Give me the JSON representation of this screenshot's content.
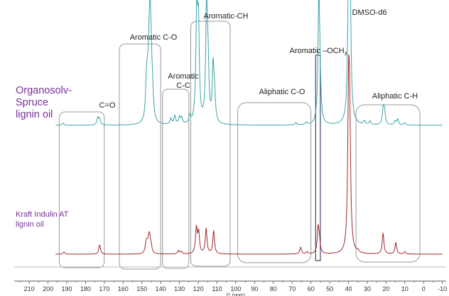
{
  "chart_data": {
    "type": "line",
    "title": "",
    "xlabel": "f1 (ppm)",
    "ylabel": "",
    "x_reversed": true,
    "xlim": [
      218,
      -12
    ],
    "x_ticks": [
      210,
      200,
      190,
      180,
      170,
      160,
      150,
      140,
      130,
      120,
      110,
      100,
      90,
      80,
      70,
      60,
      50,
      40,
      30,
      20,
      10,
      0,
      -10
    ],
    "series": [
      {
        "name_lines": [
          "Organosolv-",
          "Spruce",
          "lignin oil"
        ],
        "color": "#3aa3a8",
        "peaks": [
          {
            "x": 192,
            "h": 0.02
          },
          {
            "x": 173.5,
            "h": 0.06
          },
          {
            "x": 172.5,
            "h": 0.05
          },
          {
            "x": 147.6,
            "h": 0.28
          },
          {
            "x": 147.0,
            "h": 0.21
          },
          {
            "x": 146.2,
            "h": 0.43
          },
          {
            "x": 145.6,
            "h": 0.68
          },
          {
            "x": 145.0,
            "h": 0.3
          },
          {
            "x": 144.3,
            "h": 0.16
          },
          {
            "x": 134.6,
            "h": 0.05
          },
          {
            "x": 132.5,
            "h": 0.07
          },
          {
            "x": 130.0,
            "h": 0.06
          },
          {
            "x": 128.8,
            "h": 0.05
          },
          {
            "x": 124.5,
            "h": 0.06
          },
          {
            "x": 120.8,
            "h": 0.9
          },
          {
            "x": 119.9,
            "h": 0.75
          },
          {
            "x": 115.6,
            "h": 0.93
          },
          {
            "x": 114.8,
            "h": 0.42
          },
          {
            "x": 112.1,
            "h": 0.46
          },
          {
            "x": 111.3,
            "h": 0.2
          },
          {
            "x": 68,
            "h": 0.02
          },
          {
            "x": 62.5,
            "h": 0.02
          },
          {
            "x": 55.8,
            "h": 1.0
          },
          {
            "x": 55.2,
            "h": 0.26
          },
          {
            "x": 39.9,
            "h": 1.0
          },
          {
            "x": 39.5,
            "h": 0.85
          },
          {
            "x": 39.1,
            "h": 0.55
          },
          {
            "x": 31.5,
            "h": 0.03
          },
          {
            "x": 28.5,
            "h": 0.03
          },
          {
            "x": 21.5,
            "h": 0.13
          },
          {
            "x": 20.8,
            "h": 0.1
          },
          {
            "x": 15.2,
            "h": 0.03
          },
          {
            "x": 13.8,
            "h": 0.05
          },
          {
            "x": 10,
            "h": 0.02
          }
        ]
      },
      {
        "name_lines": [
          "Kraft Indulin AT",
          "lignin oil"
        ],
        "color": "#a0282a",
        "peaks": [
          {
            "x": 191.5,
            "h": 0.02
          },
          {
            "x": 172.5,
            "h": 0.08
          },
          {
            "x": 147.8,
            "h": 0.08
          },
          {
            "x": 147.2,
            "h": 0.06
          },
          {
            "x": 146.3,
            "h": 0.11
          },
          {
            "x": 145.8,
            "h": 0.09
          },
          {
            "x": 145.1,
            "h": 0.05
          },
          {
            "x": 130.5,
            "h": 0.03
          },
          {
            "x": 129.0,
            "h": 0.02
          },
          {
            "x": 121.0,
            "h": 0.22
          },
          {
            "x": 119.8,
            "h": 0.18
          },
          {
            "x": 115.8,
            "h": 0.22
          },
          {
            "x": 111.8,
            "h": 0.2
          },
          {
            "x": 65.5,
            "h": 0.06
          },
          {
            "x": 62.0,
            "h": 0.02
          },
          {
            "x": 56.2,
            "h": 0.22
          },
          {
            "x": 55.5,
            "h": 0.1
          },
          {
            "x": 40.0,
            "h": 1.0
          },
          {
            "x": 39.6,
            "h": 0.75
          },
          {
            "x": 39.2,
            "h": 0.47
          },
          {
            "x": 35.0,
            "h": 0.02
          },
          {
            "x": 21.6,
            "h": 0.18
          },
          {
            "x": 14.8,
            "h": 0.1
          },
          {
            "x": 10,
            "h": 0.02
          }
        ]
      }
    ],
    "regions": [
      {
        "label": "C=O",
        "x_range": [
          194,
          170
        ],
        "shape": "rounded-rect"
      },
      {
        "label": "Aromatic C-O",
        "x_range": [
          162,
          140
        ],
        "shape": "rounded-rect"
      },
      {
        "label_lines": [
          "Aromatic",
          "C-C"
        ],
        "x_range": [
          139,
          125
        ],
        "shape": "rounded-rect"
      },
      {
        "label": "Aromatic-CH",
        "x_range": [
          124,
          103
        ],
        "shape": "rounded-rect"
      },
      {
        "label": "Aliphatic C-O",
        "x_range": [
          99,
          60
        ],
        "shape": "rounded-rect"
      },
      {
        "label": "Aromatic –OCH",
        "label_sub": "3",
        "x_range": [
          57.5,
          55
        ],
        "shape": "rect"
      },
      {
        "label": "Aliphatic C-H",
        "x_range": [
          36,
          2
        ],
        "shape": "rounded-rect"
      },
      {
        "label": "DMSO-d6",
        "x_range": [
          40.5,
          39
        ],
        "shape": "none"
      }
    ]
  }
}
